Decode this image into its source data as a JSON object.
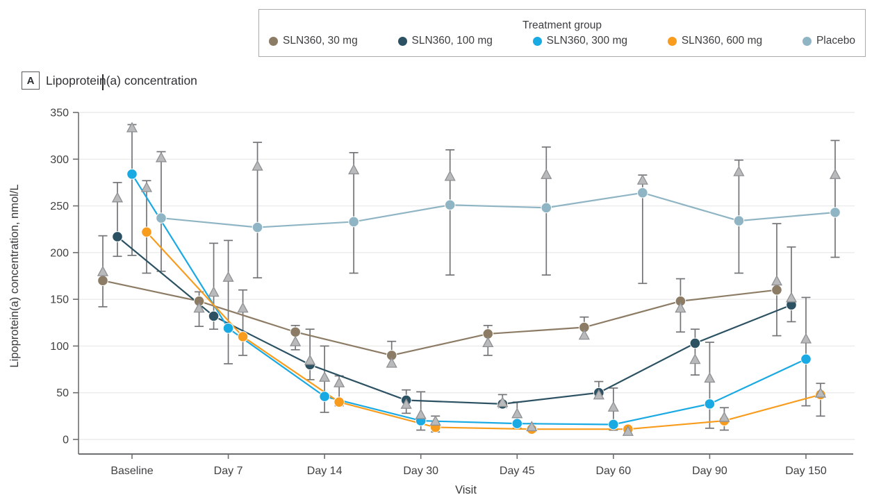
{
  "panel": {
    "label": "A",
    "title": "Lipoprotein(a) concentration"
  },
  "legend": {
    "title": "Treatment group",
    "items": [
      {
        "label": "SLN360, 30 mg",
        "color": "#8c7c65",
        "marker": "circle"
      },
      {
        "label": "SLN360, 100 mg",
        "color": "#2c5162",
        "marker": "circle"
      },
      {
        "label": "SLN360, 300 mg",
        "color": "#19a9e3",
        "marker": "circle"
      },
      {
        "label": "SLN360, 600 mg",
        "color": "#f89c1e",
        "marker": "circle"
      },
      {
        "label": "Placebo",
        "color": "#8fb5c4",
        "marker": "circle"
      }
    ]
  },
  "chart_data": {
    "type": "line",
    "title": "Lipoprotein(a) concentration",
    "xlabel": "Visit",
    "ylabel": "Lipoprotein(a) concentration, nmol/L",
    "ylim": [
      0,
      350
    ],
    "yticks": [
      0,
      50,
      100,
      150,
      200,
      250,
      300,
      350
    ],
    "grid": true,
    "legend_position": "top",
    "categories": [
      "Baseline",
      "Day 7",
      "Day 14",
      "Day 30",
      "Day 45",
      "Day 60",
      "Day 90",
      "Day 150"
    ],
    "markers": {
      "circle": "group value connected by line",
      "triangle": "mean with error bars",
      "triangle_fill": "#b9babc",
      "triangle_stroke": "#8f9093",
      "errorbar_color": "#737477"
    },
    "series": [
      {
        "name": "SLN360, 30 mg",
        "color": "#8c7c65",
        "values": [
          170,
          148,
          115,
          90,
          113,
          120,
          148,
          160
        ],
        "means": [
          179,
          140,
          104,
          81,
          103,
          111,
          140,
          169
        ],
        "ci_low": [
          142,
          121,
          96,
          78,
          90,
          108,
          115,
          111
        ],
        "ci_high": [
          218,
          158,
          122,
          105,
          122,
          131,
          172,
          231
        ]
      },
      {
        "name": "SLN360, 100 mg",
        "color": "#2c5162",
        "values": [
          217,
          132,
          80,
          42,
          38,
          50,
          103,
          144
        ],
        "means": [
          258,
          157,
          84,
          37,
          39,
          47,
          85,
          151
        ],
        "ci_low": [
          196,
          118,
          64,
          28,
          34,
          44,
          69,
          126
        ],
        "ci_high": [
          275,
          210,
          118,
          53,
          48,
          62,
          118,
          206
        ]
      },
      {
        "name": "SLN360, 300 mg",
        "color": "#19a9e3",
        "values": [
          284,
          119,
          46,
          20,
          17,
          16,
          38,
          86
        ],
        "means": [
          333,
          173,
          66,
          26,
          27,
          34,
          65,
          107
        ],
        "ci_low": [
          197,
          81,
          29,
          10,
          12,
          10,
          12,
          36
        ],
        "ci_high": [
          337,
          213,
          100,
          51,
          40,
          55,
          104,
          152
        ]
      },
      {
        "name": "SLN360, 600 mg",
        "color": "#f89c1e",
        "values": [
          222,
          110,
          40,
          13,
          11,
          11,
          20,
          48
        ],
        "means": [
          269,
          140,
          60,
          19,
          13,
          8,
          23,
          49
        ],
        "ci_low": [
          178,
          90,
          36,
          8,
          8,
          5,
          10,
          25
        ],
        "ci_high": [
          277,
          160,
          68,
          25,
          17,
          14,
          34,
          60
        ]
      },
      {
        "name": "Placebo",
        "color": "#8fb5c4",
        "values": [
          237,
          227,
          233,
          251,
          248,
          264,
          234,
          243
        ],
        "means": [
          301,
          292,
          288,
          281,
          283,
          277,
          286,
          283
        ],
        "ci_low": [
          180,
          173,
          178,
          176,
          176,
          167,
          178,
          195
        ],
        "ci_high": [
          308,
          318,
          307,
          310,
          313,
          283,
          299,
          320
        ]
      }
    ]
  }
}
